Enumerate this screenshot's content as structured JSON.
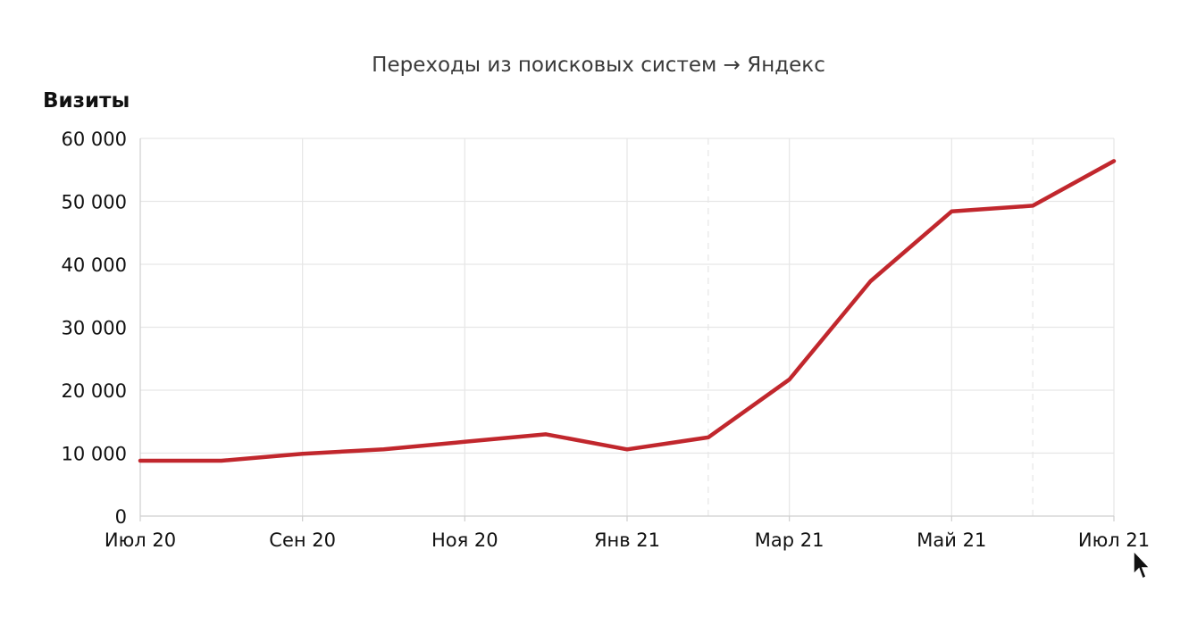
{
  "chart_data": {
    "type": "line",
    "title": "Переходы из поисковых систем → Яндекс",
    "ylabel": "Визиты",
    "xlabel": "",
    "x": [
      "2020-07",
      "2020-08",
      "2020-09",
      "2020-10",
      "2020-11",
      "2020-12",
      "2021-01",
      "2021-02",
      "2021-03",
      "2021-04",
      "2021-05",
      "2021-06",
      "2021-07"
    ],
    "x_tick_labels": [
      "Июл 20",
      "Сен 20",
      "Ноя 20",
      "Янв 21",
      "Мар 21",
      "Май 21",
      "Июл 21"
    ],
    "y_ticks": [
      0,
      10000,
      20000,
      30000,
      40000,
      50000,
      60000
    ],
    "y_tick_labels": [
      "0",
      "10 000",
      "20 000",
      "30 000",
      "40 000",
      "50 000",
      "60 000"
    ],
    "ylim": [
      0,
      60000
    ],
    "grid": true,
    "legend": "none",
    "series": [
      {
        "values": [
          8800,
          8800,
          9900,
          10600,
          11800,
          13000,
          10600,
          12500,
          21700,
          37300,
          48400,
          49300,
          56400
        ],
        "color": "#c1272d"
      }
    ]
  }
}
